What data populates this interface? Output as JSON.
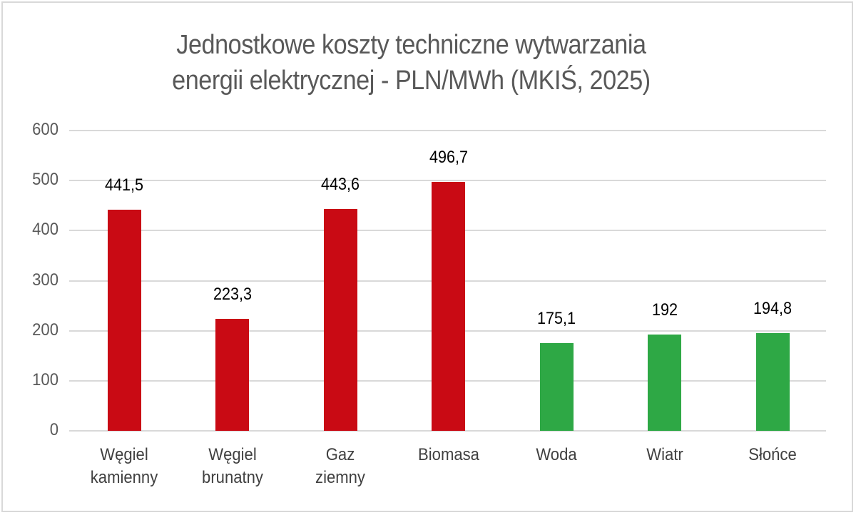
{
  "chart_data": {
    "type": "bar",
    "title": "Jednostkowe koszty techniczne wytwarzania energii elektrycznej - PLN/MWh (MKIŚ, 2025)",
    "title_lines": [
      "Jednostkowe koszty techniczne wytwarzania",
      "energii elektrycznej - PLN/MWh (MKIŚ, 2025)"
    ],
    "categories": [
      "Węgiel\nkamienny",
      "Węgiel\nbrunatny",
      "Gaz\nziemny",
      "Biomasa",
      "Woda",
      "Wiatr",
      "Słońce"
    ],
    "values": [
      441.5,
      223.3,
      443.6,
      496.7,
      175.1,
      192,
      194.8
    ],
    "data_labels": [
      "441,5",
      "223,3",
      "443,6",
      "496,7",
      "175,1",
      "192",
      "194,8"
    ],
    "bar_colors": [
      "#c90a14",
      "#c90a14",
      "#c90a14",
      "#c90a14",
      "#2ea845",
      "#2ea845",
      "#2ea845"
    ],
    "xlabel": "",
    "ylabel": "",
    "ylim": [
      0,
      600
    ],
    "yticks": [
      0,
      100,
      200,
      300,
      400,
      500,
      600
    ],
    "grid": true,
    "legend": "none"
  }
}
